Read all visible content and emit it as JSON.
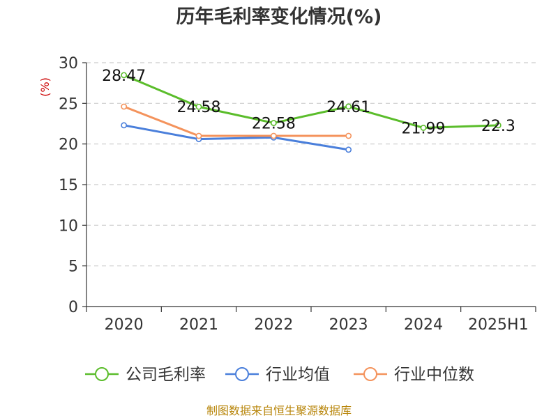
{
  "chart_data": {
    "type": "line",
    "title": "历年毛利率变化情况(%)",
    "ylabel": "(%)",
    "categories": [
      "2020",
      "2021",
      "2022",
      "2023",
      "2024",
      "2025H1"
    ],
    "y_ticks": [
      "0",
      "5",
      "10",
      "15",
      "20",
      "25",
      "30"
    ],
    "ylim": [
      0,
      30
    ],
    "grid": true,
    "legend_position": "bottom",
    "series": [
      {
        "name": "公司毛利率",
        "color": "#5bbd2b",
        "values": [
          28.47,
          24.58,
          22.58,
          24.61,
          21.99,
          22.3
        ],
        "labels": [
          "28.47",
          "24.58",
          "22.58",
          "24.61",
          "21.99",
          "22.3"
        ]
      },
      {
        "name": "行业均值",
        "color": "#4a7fdb",
        "values": [
          22.3,
          20.6,
          20.8,
          19.3,
          null,
          null
        ]
      },
      {
        "name": "行业中位数",
        "color": "#f4935c",
        "values": [
          24.6,
          21.0,
          21.0,
          21.0,
          null,
          null
        ]
      }
    ]
  },
  "source_note": "制图数据来自恒生聚源数据库"
}
